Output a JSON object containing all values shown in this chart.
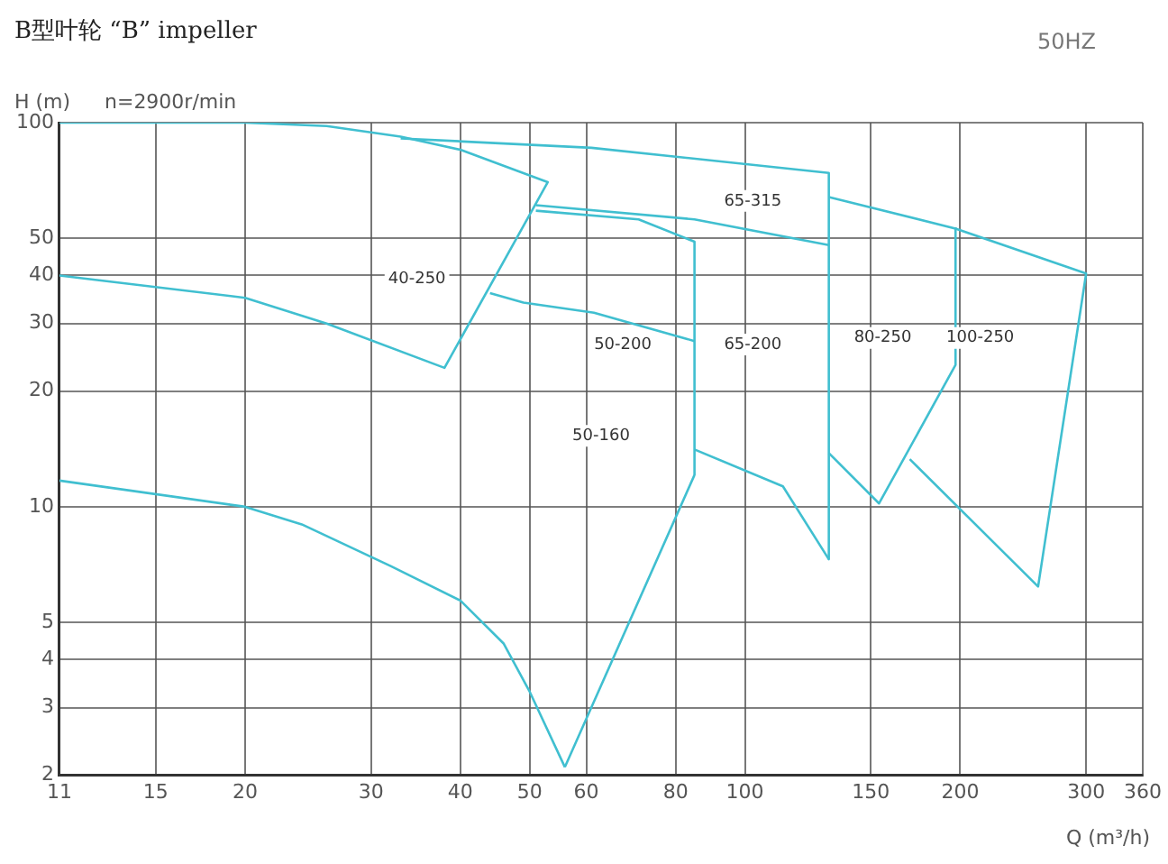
{
  "chart_data": {
    "type": "line",
    "title": "B型叶轮 “B” impeller",
    "subtitle": "n=2900r/min",
    "xlabel": "Q (m³/h)",
    "ylabel": "H (m)",
    "log": "xy",
    "grid": true,
    "legend": false,
    "marker": "none",
    "line_style": "solid",
    "xlim": [
      11,
      360
    ],
    "xticks": [
      11,
      15,
      20,
      30,
      40,
      50,
      60,
      80,
      100,
      150,
      200,
      300,
      360
    ],
    "ylim": [
      2,
      100
    ],
    "yticks": [
      2,
      3,
      4,
      5,
      10,
      20,
      30,
      40,
      50,
      100
    ],
    "series": [
      {
        "color": "#40bfd0",
        "x": [
          11,
          20,
          26,
          33,
          40,
          53,
          38,
          26,
          20,
          11
        ],
        "values": [
          100,
          100,
          98,
          92,
          85,
          70,
          23,
          30,
          35,
          40
        ]
      },
      {
        "color": "#40bfd0",
        "x": [
          33,
          61,
          131,
          131
        ],
        "values": [
          91,
          86,
          74,
          7.3
        ]
      },
      {
        "color": "#40bfd0",
        "x": [
          51,
          85,
          131
        ],
        "values": [
          61,
          56,
          48
        ]
      },
      {
        "color": "#40bfd0",
        "x": [
          51,
          71,
          85,
          85,
          56
        ],
        "values": [
          59,
          56,
          49,
          12.1,
          2.1
        ]
      },
      {
        "color": "#40bfd0",
        "x": [
          85,
          113,
          131
        ],
        "values": [
          14.1,
          11.3,
          7.3
        ]
      },
      {
        "color": "#40bfd0",
        "x": [
          44,
          49,
          61.5,
          85
        ],
        "values": [
          36,
          34,
          32,
          27
        ]
      },
      {
        "color": "#40bfd0",
        "x": [
          11,
          20,
          24,
          32,
          40,
          46,
          50,
          56
        ],
        "values": [
          11.7,
          10,
          9,
          7,
          5.7,
          4.4,
          3.3,
          2.1
        ]
      },
      {
        "color": "#40bfd0",
        "x": [
          131,
          154,
          197,
          197
        ],
        "values": [
          13.8,
          10.2,
          23.4,
          53.4
        ]
      },
      {
        "color": "#40bfd0",
        "x": [
          131,
          197,
          300,
          257,
          170
        ],
        "values": [
          64,
          53,
          40.5,
          6.2,
          13.3
        ]
      }
    ],
    "annotations": [
      "50HZ",
      "40-250",
      "50-200",
      "65-315",
      "65-200",
      "80-250",
      "100-250",
      "50-160"
    ]
  }
}
